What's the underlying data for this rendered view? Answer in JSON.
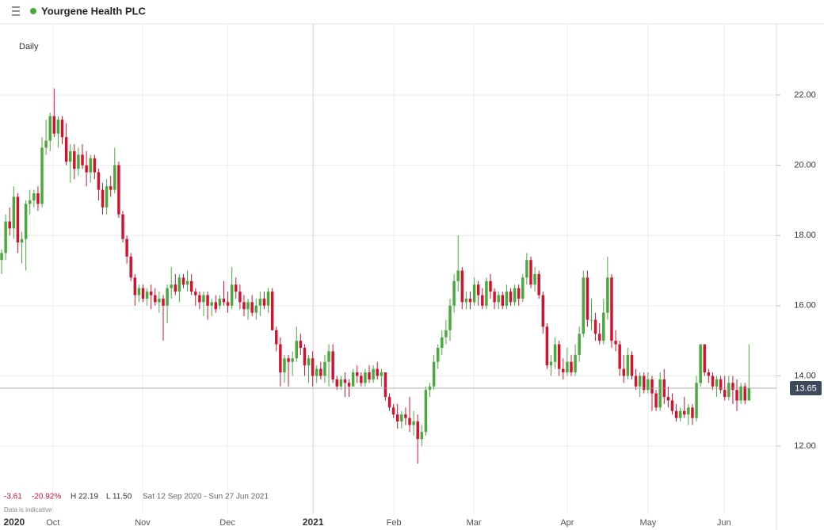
{
  "header": {
    "title": "Yourgene Health PLC"
  },
  "chart_data": {
    "type": "candlestick",
    "interval": "Daily",
    "up_color": "#4aa93c",
    "down_color": "#d2122e",
    "grid": true,
    "xlim": [
      -0.4,
      191.8
    ],
    "ylim": [
      9.61,
      24.03
    ],
    "yticks": [
      {
        "value": 12,
        "label": "12.00"
      },
      {
        "value": 14,
        "label": "14.00"
      },
      {
        "value": 16,
        "label": "16.00"
      },
      {
        "value": 18,
        "label": "18.00"
      },
      {
        "value": 20,
        "label": "20.00"
      },
      {
        "value": 22,
        "label": "22.00"
      }
    ],
    "xticks": [
      {
        "value": 3.1,
        "label": "2020"
      },
      {
        "value": 12.7,
        "label": "Oct"
      },
      {
        "value": 34.9,
        "label": "Nov"
      },
      {
        "value": 55.9,
        "label": "Dec"
      },
      {
        "value": 77.1,
        "label": "2021"
      },
      {
        "value": 97.1,
        "label": "Feb"
      },
      {
        "value": 116.9,
        "label": "Mar"
      },
      {
        "value": 140.0,
        "label": "Apr"
      },
      {
        "value": 160.0,
        "label": "May"
      },
      {
        "value": 178.8,
        "label": "Jun"
      }
    ],
    "last_price": {
      "value": 13.65,
      "label": "13.65"
    },
    "stats": {
      "change": "-3.61",
      "change_pct": "-20.92%",
      "high": "H 22.19",
      "low": "L 11.50",
      "range": "Sat 12 Sep 2020 - Sun 27 Jun 2021",
      "note": "Data is indicative"
    },
    "ohlc": [
      [
        17.3,
        17.6,
        16.9,
        17.5
      ],
      [
        17.5,
        18.6,
        17.3,
        18.4
      ],
      [
        18.4,
        18.8,
        18.0,
        18.2
      ],
      [
        18.2,
        19.4,
        17.9,
        19.1
      ],
      [
        19.1,
        19.2,
        17.5,
        17.8
      ],
      [
        17.8,
        18.1,
        17.2,
        17.9
      ],
      [
        17.9,
        19.0,
        17.0,
        18.9
      ],
      [
        18.9,
        19.3,
        18.6,
        19.0
      ],
      [
        19.0,
        19.3,
        18.8,
        19.2
      ],
      [
        19.2,
        19.4,
        18.7,
        18.9
      ],
      [
        18.9,
        20.8,
        18.8,
        20.5
      ],
      [
        20.5,
        21.3,
        20.3,
        20.7
      ],
      [
        20.7,
        21.5,
        20.4,
        21.4
      ],
      [
        21.4,
        22.19,
        20.8,
        20.9
      ],
      [
        20.9,
        21.4,
        20.5,
        21.3
      ],
      [
        21.3,
        21.4,
        20.6,
        20.8
      ],
      [
        20.8,
        21.2,
        20.0,
        20.1
      ],
      [
        20.1,
        20.6,
        19.5,
        20.4
      ],
      [
        20.4,
        20.6,
        19.6,
        19.9
      ],
      [
        19.9,
        20.5,
        19.7,
        20.3
      ],
      [
        20.3,
        20.6,
        19.9,
        20.0
      ],
      [
        20.0,
        20.4,
        19.4,
        19.8
      ],
      [
        19.8,
        20.3,
        19.5,
        20.2
      ],
      [
        20.2,
        20.3,
        19.6,
        19.8
      ],
      [
        19.8,
        19.9,
        19.0,
        19.3
      ],
      [
        19.3,
        19.5,
        18.6,
        18.8
      ],
      [
        18.8,
        19.6,
        18.6,
        19.4
      ],
      [
        19.4,
        19.7,
        19.1,
        19.3
      ],
      [
        19.3,
        20.5,
        19.2,
        20.0
      ],
      [
        20.0,
        20.1,
        18.5,
        18.6
      ],
      [
        18.6,
        18.7,
        17.8,
        17.9
      ],
      [
        17.9,
        18.0,
        17.2,
        17.4
      ],
      [
        17.4,
        17.5,
        16.7,
        16.8
      ],
      [
        16.8,
        16.9,
        16.0,
        16.3
      ],
      [
        16.3,
        16.6,
        16.1,
        16.5
      ],
      [
        16.5,
        16.6,
        16.1,
        16.2
      ],
      [
        16.2,
        16.5,
        16.0,
        16.4
      ],
      [
        16.4,
        16.6,
        15.9,
        16.3
      ],
      [
        16.3,
        16.5,
        16.0,
        16.1
      ],
      [
        16.1,
        16.4,
        15.8,
        16.2
      ],
      [
        16.2,
        16.3,
        15.0,
        16.0
      ],
      [
        16.0,
        16.6,
        15.5,
        16.5
      ],
      [
        16.5,
        17.1,
        16.2,
        16.6
      ],
      [
        16.6,
        16.9,
        16.3,
        16.4
      ],
      [
        16.4,
        16.9,
        16.1,
        16.8
      ],
      [
        16.8,
        16.9,
        16.5,
        16.6
      ],
      [
        16.6,
        17.0,
        16.4,
        16.7
      ],
      [
        16.7,
        16.9,
        16.3,
        16.4
      ],
      [
        16.4,
        16.5,
        16.0,
        16.3
      ],
      [
        16.3,
        16.4,
        15.9,
        16.1
      ],
      [
        16.1,
        16.4,
        15.7,
        16.3
      ],
      [
        16.3,
        16.4,
        15.6,
        16.0
      ],
      [
        16.0,
        16.2,
        15.7,
        16.1
      ],
      [
        16.1,
        16.3,
        15.8,
        15.9
      ],
      [
        16.0,
        16.3,
        15.9,
        16.2
      ],
      [
        16.2,
        16.7,
        16.0,
        16.1
      ],
      [
        16.1,
        16.4,
        15.8,
        16.0
      ],
      [
        16.0,
        17.1,
        15.9,
        16.6
      ],
      [
        16.6,
        16.8,
        16.2,
        16.4
      ],
      [
        16.4,
        16.6,
        15.9,
        16.1
      ],
      [
        16.1,
        16.3,
        15.7,
        15.9
      ],
      [
        15.9,
        16.2,
        15.6,
        16.1
      ],
      [
        16.1,
        16.3,
        15.7,
        15.8
      ],
      [
        15.8,
        16.2,
        15.6,
        16.0
      ],
      [
        16.0,
        16.4,
        15.7,
        16.2
      ],
      [
        16.2,
        16.4,
        15.9,
        16.0
      ],
      [
        16.0,
        16.5,
        15.8,
        16.4
      ],
      [
        16.4,
        16.5,
        15.3,
        15.3
      ],
      [
        15.3,
        15.4,
        14.7,
        14.9
      ],
      [
        14.9,
        15.1,
        13.7,
        14.1
      ],
      [
        14.1,
        14.6,
        13.8,
        14.5
      ],
      [
        14.5,
        14.6,
        13.7,
        14.4
      ],
      [
        14.4,
        14.7,
        14.0,
        14.5
      ],
      [
        14.5,
        15.4,
        14.4,
        15.0
      ],
      [
        15.0,
        15.2,
        14.6,
        14.8
      ],
      [
        14.8,
        14.9,
        14.0,
        14.3
      ],
      [
        14.3,
        14.6,
        13.8,
        14.5
      ],
      [
        14.5,
        14.7,
        13.7,
        14.0
      ],
      [
        14.0,
        14.3,
        13.8,
        14.2
      ],
      [
        14.2,
        14.4,
        13.9,
        14.0
      ],
      [
        14.0,
        14.6,
        13.8,
        14.4
      ],
      [
        14.4,
        14.9,
        13.7,
        14.7
      ],
      [
        14.7,
        14.9,
        13.8,
        13.9
      ],
      [
        13.9,
        14.0,
        13.6,
        13.7
      ],
      [
        13.7,
        14.0,
        13.6,
        13.9
      ],
      [
        13.9,
        14.1,
        13.4,
        13.8
      ],
      [
        13.8,
        13.9,
        13.4,
        13.7
      ],
      [
        13.7,
        14.2,
        13.7,
        14.1
      ],
      [
        14.1,
        14.3,
        13.8,
        14.0
      ],
      [
        14.0,
        14.1,
        13.7,
        13.8
      ],
      [
        13.8,
        14.2,
        13.7,
        14.1
      ],
      [
        14.1,
        14.3,
        13.8,
        13.9
      ],
      [
        13.9,
        14.3,
        13.8,
        14.2
      ],
      [
        14.2,
        14.4,
        13.9,
        14.0
      ],
      [
        14.0,
        14.2,
        13.7,
        14.1
      ],
      [
        14.1,
        14.1,
        13.3,
        13.4
      ],
      [
        13.4,
        13.5,
        13.0,
        13.1
      ],
      [
        13.1,
        13.2,
        12.8,
        12.9
      ],
      [
        12.9,
        13.2,
        12.5,
        12.7
      ],
      [
        12.7,
        13.0,
        12.5,
        12.9
      ],
      [
        12.9,
        13.1,
        12.6,
        12.8
      ],
      [
        12.8,
        13.4,
        12.4,
        12.6
      ],
      [
        12.6,
        13.0,
        12.3,
        12.7
      ],
      [
        12.7,
        12.9,
        11.5,
        12.2
      ],
      [
        12.2,
        12.6,
        12.0,
        12.4
      ],
      [
        12.4,
        13.7,
        12.3,
        13.6
      ],
      [
        13.6,
        13.8,
        13.4,
        13.7
      ],
      [
        13.7,
        14.6,
        13.6,
        14.4
      ],
      [
        14.4,
        14.9,
        14.2,
        14.8
      ],
      [
        14.8,
        15.3,
        14.6,
        15.1
      ],
      [
        15.1,
        15.6,
        14.9,
        15.3
      ],
      [
        15.3,
        16.2,
        15.0,
        16.0
      ],
      [
        16.0,
        16.9,
        15.8,
        16.7
      ],
      [
        16.7,
        18.0,
        16.4,
        17.0
      ],
      [
        17.0,
        17.1,
        15.9,
        16.1
      ],
      [
        16.1,
        16.4,
        15.9,
        16.2
      ],
      [
        16.2,
        16.4,
        15.9,
        16.1
      ],
      [
        16.1,
        16.8,
        16.0,
        16.6
      ],
      [
        16.6,
        16.7,
        16.0,
        16.3
      ],
      [
        16.3,
        16.5,
        15.9,
        16.0
      ],
      [
        16.0,
        16.8,
        15.9,
        16.7
      ],
      [
        16.7,
        16.9,
        16.2,
        16.4
      ],
      [
        16.4,
        16.5,
        15.9,
        16.1
      ],
      [
        16.1,
        16.4,
        15.9,
        16.3
      ],
      [
        16.3,
        16.4,
        15.9,
        16.0
      ],
      [
        16.0,
        16.6,
        15.9,
        16.4
      ],
      [
        16.4,
        16.5,
        16.0,
        16.1
      ],
      [
        16.1,
        16.6,
        16.0,
        16.5
      ],
      [
        16.5,
        16.6,
        16.0,
        16.2
      ],
      [
        16.2,
        16.9,
        16.1,
        16.8
      ],
      [
        16.8,
        17.5,
        16.6,
        17.3
      ],
      [
        17.3,
        17.4,
        16.5,
        16.6
      ],
      [
        16.6,
        17.1,
        16.4,
        16.9
      ],
      [
        16.9,
        17.0,
        16.2,
        16.3
      ],
      [
        16.3,
        16.4,
        15.2,
        15.4
      ],
      [
        15.4,
        15.5,
        14.2,
        14.3
      ],
      [
        14.3,
        14.6,
        14.0,
        14.4
      ],
      [
        14.4,
        15.1,
        14.2,
        14.9
      ],
      [
        14.9,
        15.0,
        14.0,
        14.2
      ],
      [
        14.2,
        14.5,
        13.9,
        14.1
      ],
      [
        14.1,
        14.8,
        14.0,
        14.4
      ],
      [
        14.4,
        14.6,
        14.0,
        14.1
      ],
      [
        14.1,
        14.9,
        14.0,
        14.6
      ],
      [
        14.6,
        15.4,
        14.4,
        15.2
      ],
      [
        15.2,
        17.0,
        15.1,
        16.8
      ],
      [
        16.8,
        17.0,
        15.4,
        15.6
      ],
      [
        15.6,
        16.2,
        15.3,
        15.6
      ],
      [
        15.6,
        15.8,
        15.0,
        15.2
      ],
      [
        15.2,
        15.5,
        14.9,
        15.0
      ],
      [
        15.0,
        16.2,
        14.9,
        15.8
      ],
      [
        15.8,
        17.4,
        15.6,
        16.8
      ],
      [
        16.8,
        16.9,
        14.8,
        15.0
      ],
      [
        15.0,
        15.3,
        14.7,
        14.9
      ],
      [
        14.9,
        15.0,
        14.0,
        14.2
      ],
      [
        14.2,
        14.6,
        13.8,
        14.0
      ],
      [
        14.0,
        14.8,
        13.9,
        14.6
      ],
      [
        14.6,
        14.7,
        13.9,
        14.0
      ],
      [
        14.0,
        14.2,
        13.6,
        13.7
      ],
      [
        13.7,
        14.1,
        13.4,
        14.0
      ],
      [
        14.0,
        14.1,
        13.5,
        13.6
      ],
      [
        13.6,
        14.1,
        13.5,
        13.9
      ],
      [
        13.9,
        14.0,
        13.0,
        13.5
      ],
      [
        13.5,
        13.6,
        13.0,
        13.1
      ],
      [
        13.1,
        14.1,
        13.0,
        13.9
      ],
      [
        13.9,
        14.2,
        13.2,
        13.4
      ],
      [
        13.4,
        13.7,
        13.1,
        13.3
      ],
      [
        13.3,
        13.5,
        12.9,
        13.0
      ],
      [
        13.0,
        13.2,
        12.7,
        12.8
      ],
      [
        12.8,
        13.1,
        12.7,
        13.0
      ],
      [
        13.0,
        13.4,
        12.8,
        12.9
      ],
      [
        12.9,
        13.2,
        12.6,
        13.1
      ],
      [
        13.1,
        13.2,
        12.6,
        12.8
      ],
      [
        12.8,
        14.0,
        12.7,
        13.8
      ],
      [
        13.8,
        14.9,
        13.7,
        14.9
      ],
      [
        14.9,
        14.9,
        14.0,
        14.1
      ],
      [
        14.1,
        14.2,
        13.8,
        14.0
      ],
      [
        14.0,
        14.1,
        13.6,
        13.7
      ],
      [
        13.7,
        14.0,
        13.4,
        13.9
      ],
      [
        13.9,
        14.0,
        13.5,
        13.6
      ],
      [
        13.6,
        14.0,
        13.3,
        13.4
      ],
      [
        13.4,
        14.0,
        13.3,
        13.8
      ],
      [
        13.8,
        14.0,
        13.2,
        13.6
      ],
      [
        13.6,
        13.9,
        13.0,
        13.3
      ],
      [
        13.3,
        13.8,
        13.2,
        13.7
      ],
      [
        13.7,
        13.8,
        13.2,
        13.3
      ],
      [
        13.3,
        14.9,
        13.3,
        13.65
      ]
    ]
  }
}
